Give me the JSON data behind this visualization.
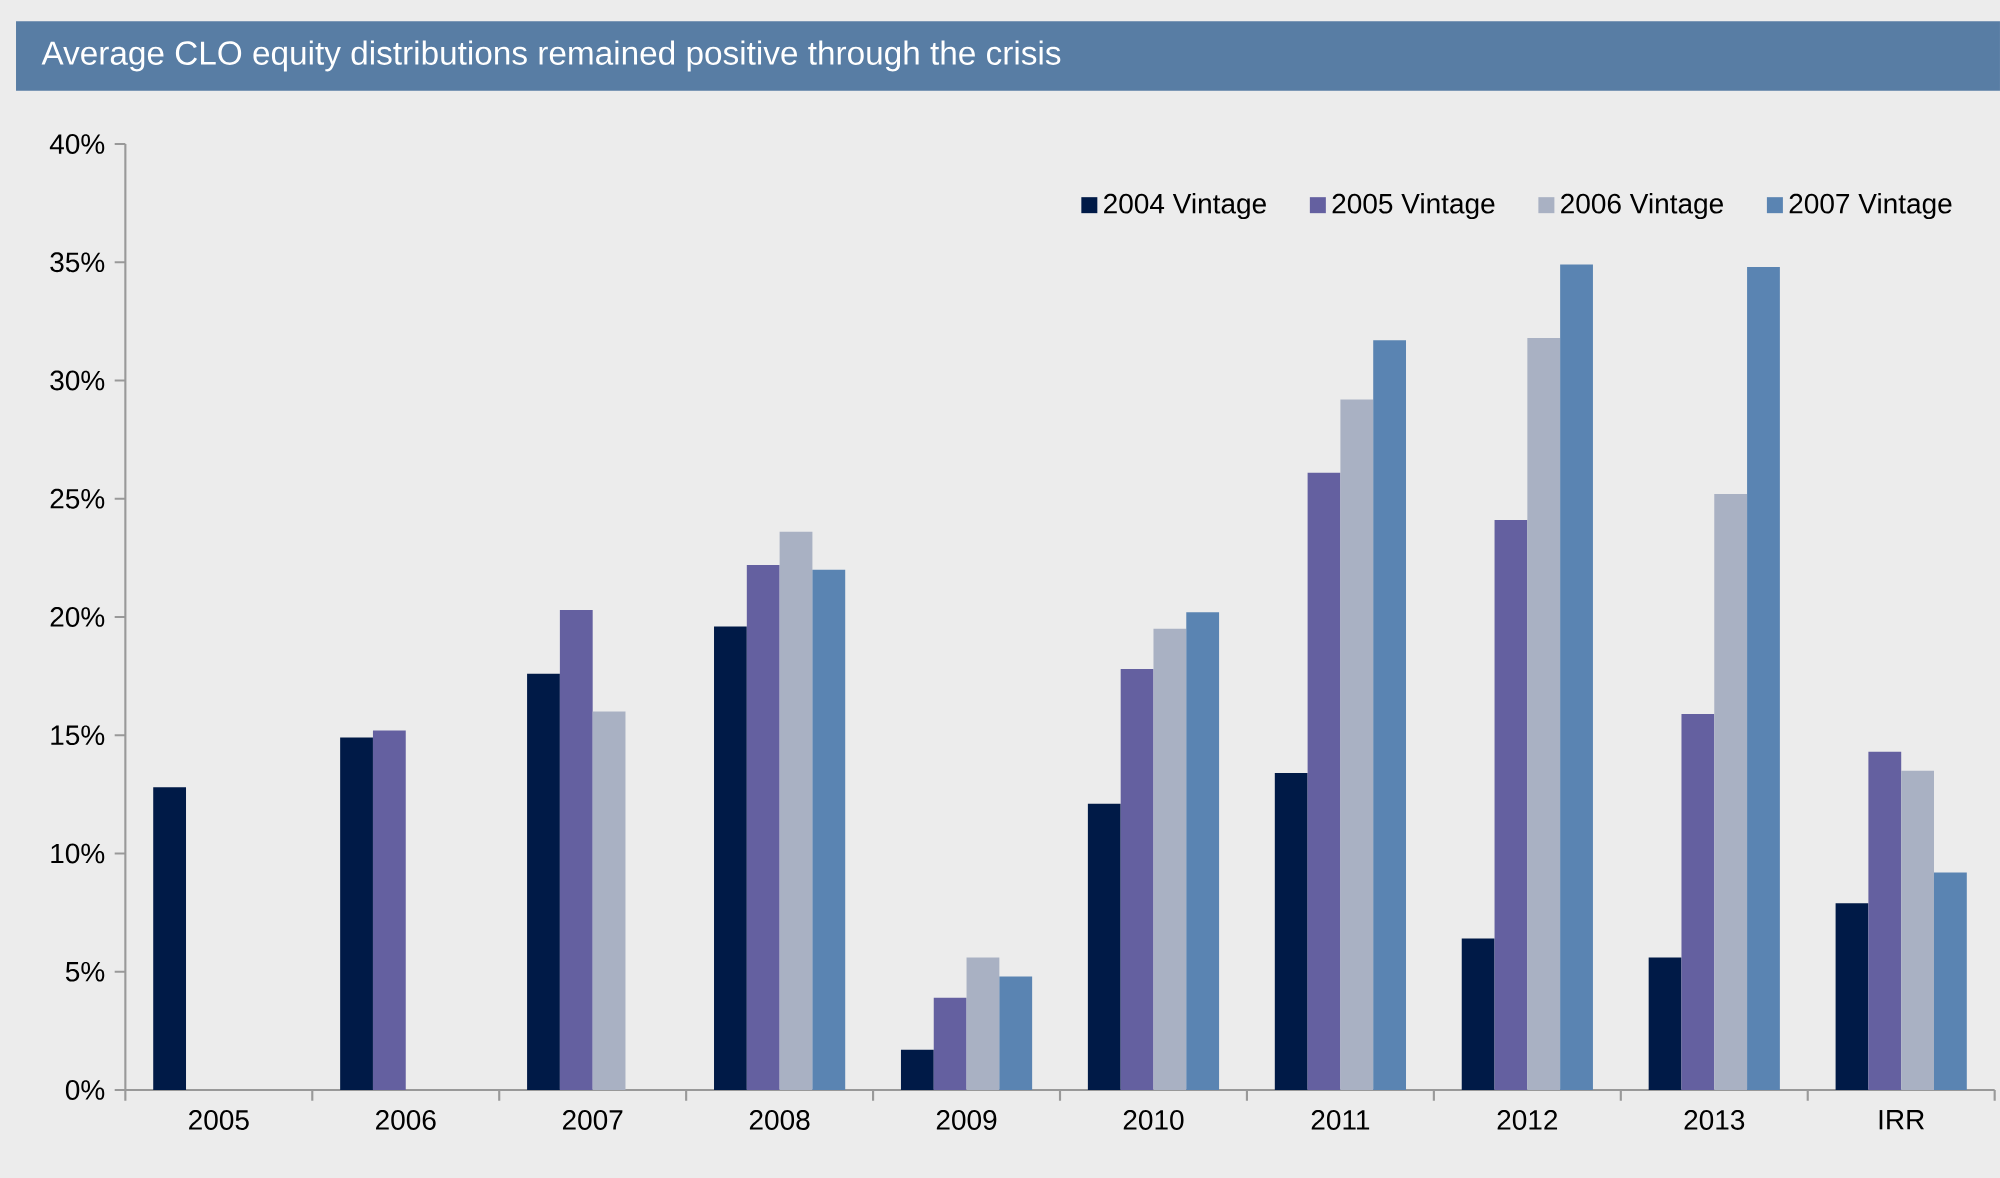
{
  "chart_data": {
    "type": "bar",
    "title": "Average CLO equity distributions remained positive through the crisis",
    "categories": [
      "2005",
      "2006",
      "2007",
      "2008",
      "2009",
      "2010",
      "2011",
      "2012",
      "2013",
      "IRR"
    ],
    "series": [
      {
        "name": "2004 Vintage",
        "color": "#001a47",
        "values": [
          12.8,
          14.9,
          17.6,
          19.6,
          1.7,
          12.1,
          13.4,
          6.4,
          5.6,
          7.9
        ]
      },
      {
        "name": "2005 Vintage",
        "color": "#6460a0",
        "values": [
          null,
          15.2,
          20.3,
          22.2,
          3.9,
          17.8,
          26.1,
          24.1,
          15.9,
          14.3
        ]
      },
      {
        "name": "2006 Vintage",
        "color": "#a9b1c3",
        "values": [
          null,
          null,
          16.0,
          23.6,
          5.6,
          19.5,
          29.2,
          31.8,
          25.2,
          13.5
        ]
      },
      {
        "name": "2007 Vintage",
        "color": "#5a84b2",
        "values": [
          null,
          null,
          null,
          22.0,
          4.8,
          20.2,
          31.7,
          34.9,
          34.8,
          9.2
        ]
      }
    ],
    "ylim": [
      0,
      40
    ],
    "yticks": [
      {
        "value": 0,
        "label": "0%"
      },
      {
        "value": 5,
        "label": "5%"
      },
      {
        "value": 10,
        "label": "10%"
      },
      {
        "value": 15,
        "label": "15%"
      },
      {
        "value": 20,
        "label": "20%"
      },
      {
        "value": 25,
        "label": "25%"
      },
      {
        "value": 30,
        "label": "30%"
      },
      {
        "value": 35,
        "label": "35%"
      },
      {
        "value": 40,
        "label": "40%"
      }
    ],
    "grid": false,
    "legend": "top right"
  }
}
